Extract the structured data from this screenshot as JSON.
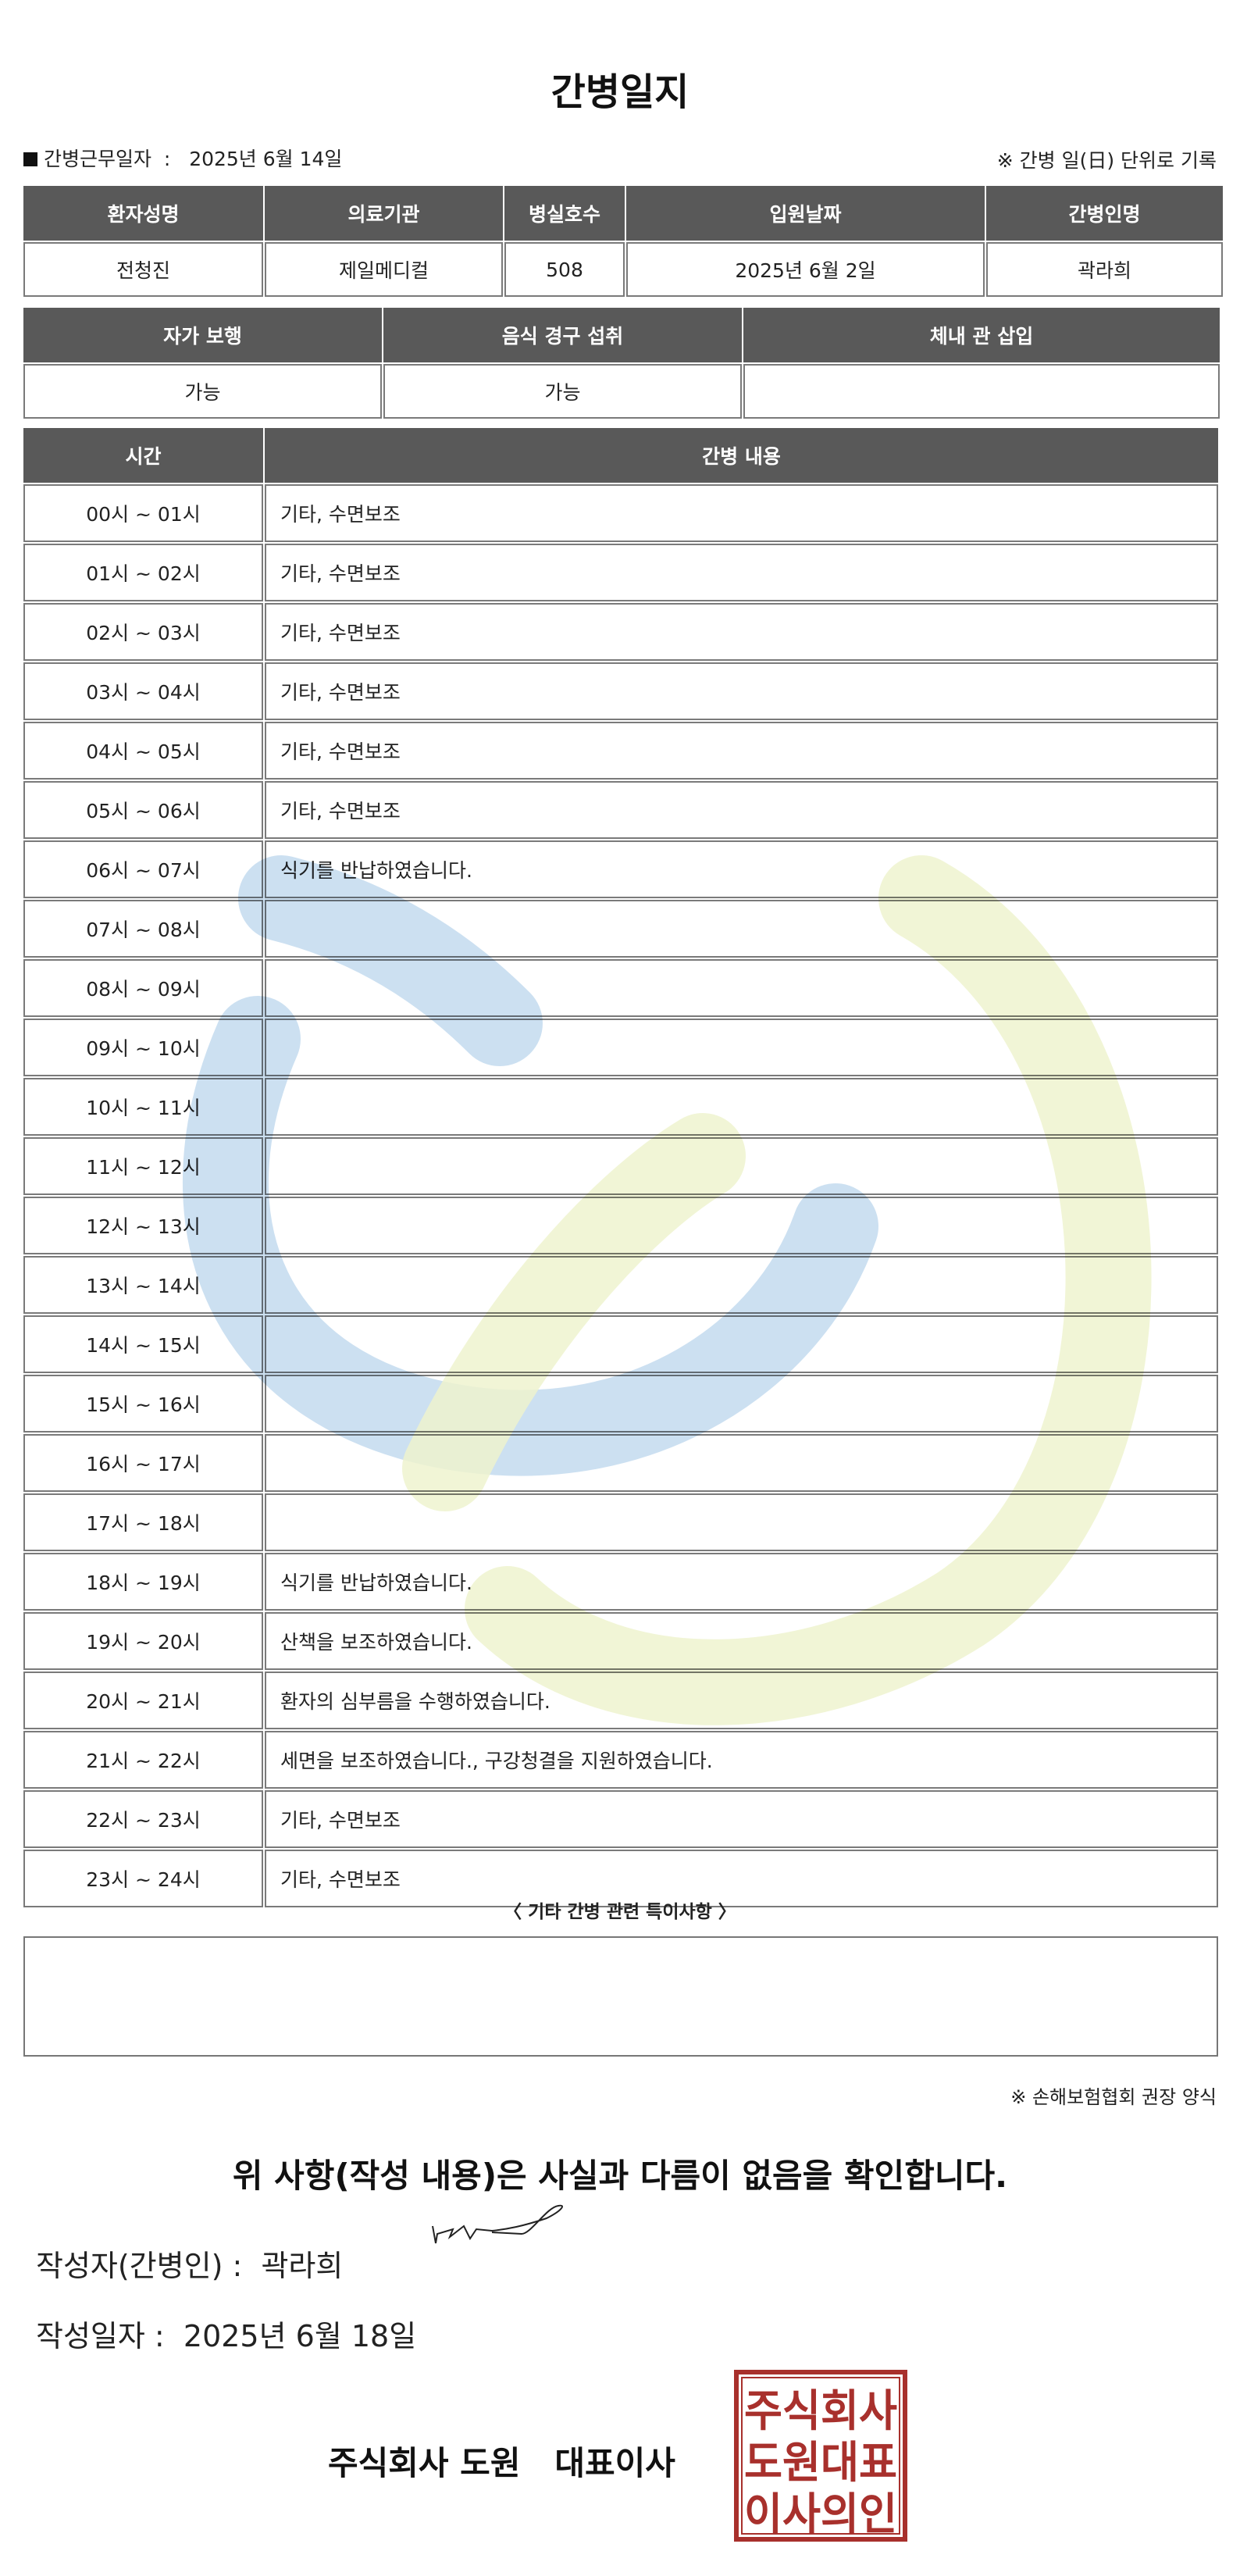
{
  "title": "간병일지",
  "work_date_label": "간병근무일자",
  "work_date_value": "2025년 6월 14일",
  "daily_note": "※ 간병 일(日) 단위로 기록",
  "patient_table": {
    "headers": [
      "환자성명",
      "의료기관",
      "병실호수",
      "입원날짜",
      "간병인명"
    ],
    "values": [
      "전청진",
      "제일메디컬",
      "508",
      "2025년 6월 2일",
      "곽라희"
    ]
  },
  "status_table": {
    "headers": [
      "자가 보행",
      "음식 경구 섭취",
      "체내 관 삽입"
    ],
    "values": [
      "가능",
      "가능",
      ""
    ]
  },
  "log_table": {
    "headers": [
      "시간",
      "간병 내용"
    ],
    "rows": [
      {
        "time": "00시 ~ 01시",
        "content": "기타, 수면보조"
      },
      {
        "time": "01시 ~ 02시",
        "content": "기타, 수면보조"
      },
      {
        "time": "02시 ~ 03시",
        "content": "기타, 수면보조"
      },
      {
        "time": "03시 ~ 04시",
        "content": "기타, 수면보조"
      },
      {
        "time": "04시 ~ 05시",
        "content": "기타, 수면보조"
      },
      {
        "time": "05시 ~ 06시",
        "content": "기타, 수면보조"
      },
      {
        "time": "06시 ~ 07시",
        "content": "식기를 반납하였습니다."
      },
      {
        "time": "07시 ~ 08시",
        "content": ""
      },
      {
        "time": "08시 ~ 09시",
        "content": ""
      },
      {
        "time": "09시 ~ 10시",
        "content": ""
      },
      {
        "time": "10시 ~ 11시",
        "content": ""
      },
      {
        "time": "11시 ~ 12시",
        "content": ""
      },
      {
        "time": "12시 ~ 13시",
        "content": ""
      },
      {
        "time": "13시 ~ 14시",
        "content": ""
      },
      {
        "time": "14시 ~ 15시",
        "content": ""
      },
      {
        "time": "15시 ~ 16시",
        "content": ""
      },
      {
        "time": "16시 ~ 17시",
        "content": ""
      },
      {
        "time": "17시 ~ 18시",
        "content": ""
      },
      {
        "time": "18시 ~ 19시",
        "content": "식기를 반납하였습니다."
      },
      {
        "time": "19시 ~ 20시",
        "content": "산책을 보조하였습니다."
      },
      {
        "time": "20시 ~ 21시",
        "content": "환자의 심부름을 수행하였습니다."
      },
      {
        "time": "21시 ~ 22시",
        "content": "세면을 보조하였습니다., 구강청결을 지원하였습니다."
      },
      {
        "time": "22시 ~ 23시",
        "content": "기타, 수면보조"
      },
      {
        "time": "23시 ~ 24시",
        "content": "기타, 수면보조"
      }
    ]
  },
  "remarks_heading": "〈 기타 간병 관련 특이사항 〉",
  "remarks": "",
  "form_note": "※ 손해보험협회 권장 양식",
  "statement": "위 사항(작성 내용)은 사실과 다름이 없음을 확인합니다.",
  "writer_label": "작성자(간병인) :",
  "writer_name": "곽라희",
  "written_date_label": "작성일자 :",
  "written_date_value": "2025년 6월 18일",
  "company_line": "주식회사 도원   대표이사",
  "seal_text": [
    "주식회사",
    "도원대표",
    "이사의인"
  ],
  "colors": {
    "header_bg": "#595959",
    "seal": "#a8302c",
    "watermark_blue": "#c3dbee",
    "watermark_yellow": "#eef3cf"
  }
}
